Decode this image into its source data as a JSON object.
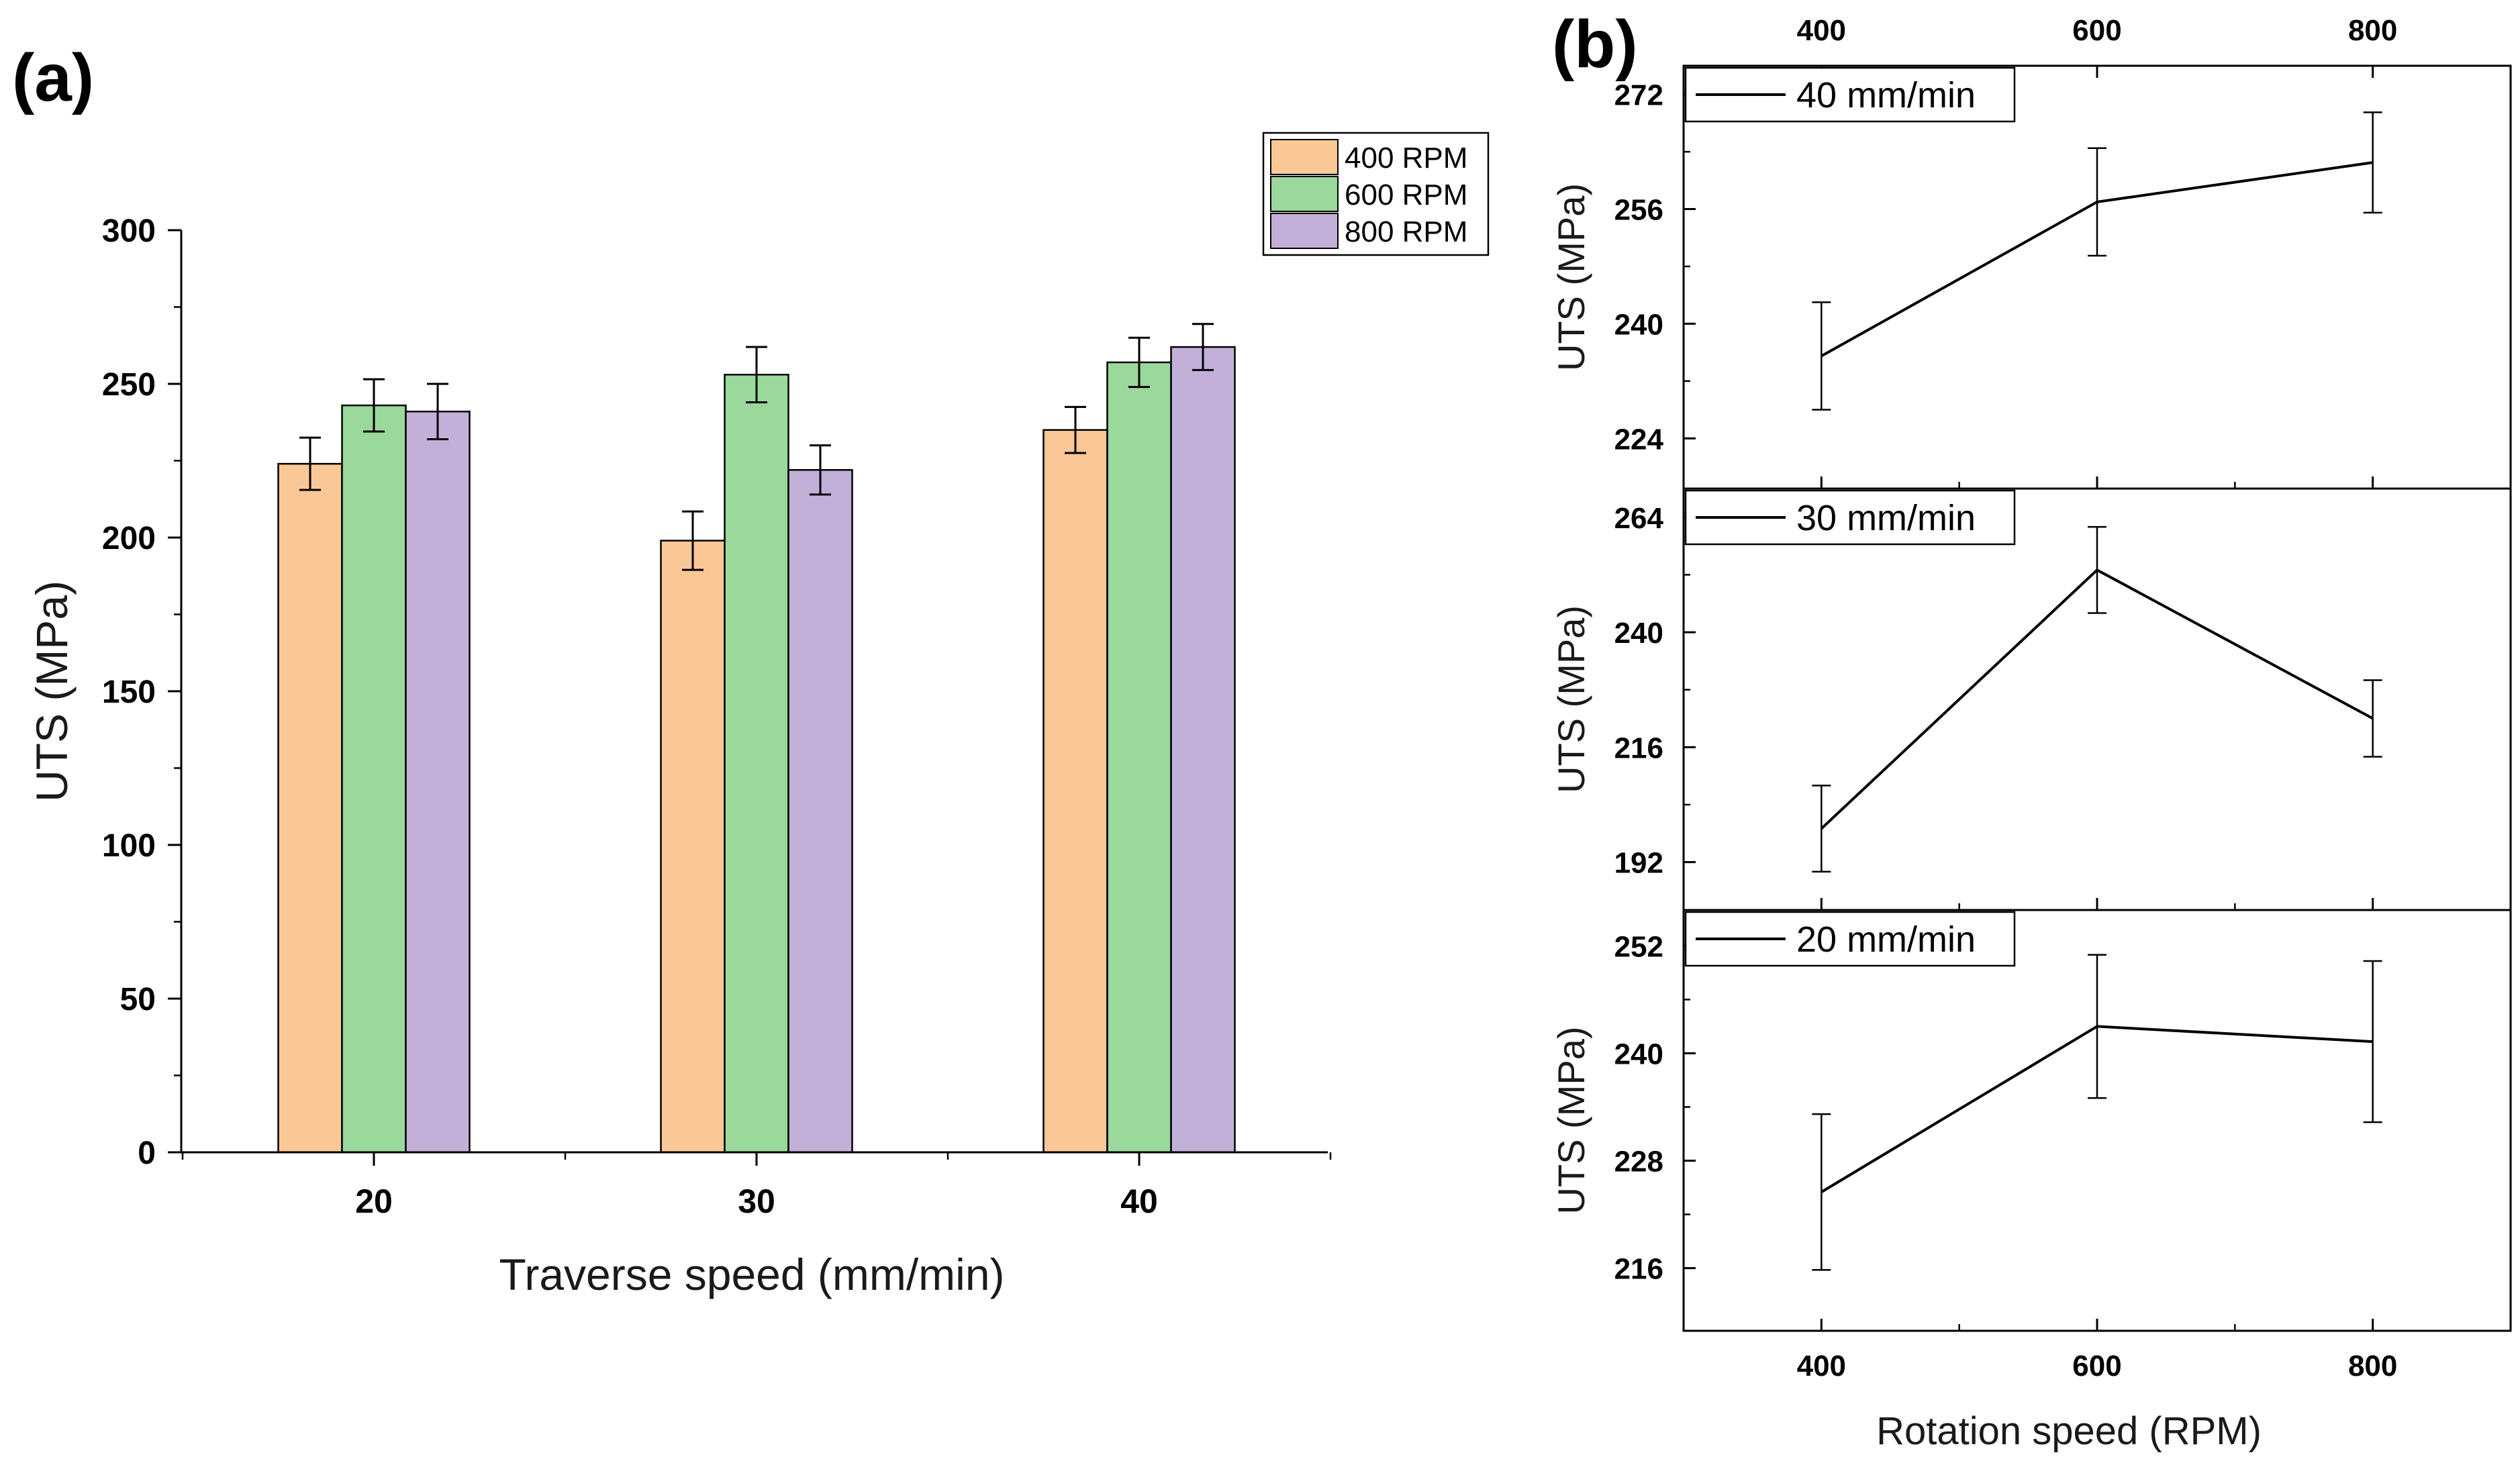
{
  "colors": {
    "rpm_400": "#FAC796",
    "rpm_600": "#9AD89C",
    "rpm_800": "#C2B0D8",
    "axis": "#000000",
    "line": "#000000"
  },
  "chart_data": [
    {
      "id": "a",
      "panel_label": "(a)",
      "type": "bar",
      "title": "",
      "xlabel": "Traverse speed (mm/min)",
      "ylabel": "UTS (MPa)",
      "categories": [
        "20",
        "30",
        "40"
      ],
      "ylim": [
        0,
        300
      ],
      "yticks": [
        0,
        50,
        100,
        150,
        200,
        250,
        300
      ],
      "legend_position": "top-right",
      "series": [
        {
          "name": "400 RPM",
          "color": "#FAC796",
          "values": [
            224,
            199,
            235
          ],
          "errors": [
            8.5,
            9.5,
            7.5
          ]
        },
        {
          "name": "600 RPM",
          "color": "#9AD89C",
          "values": [
            243,
            253,
            257
          ],
          "errors": [
            8.5,
            9,
            8
          ]
        },
        {
          "name": "800 RPM",
          "color": "#C2B0D8",
          "values": [
            241,
            222,
            262
          ],
          "errors": [
            9,
            8,
            7.5
          ]
        }
      ]
    },
    {
      "id": "b",
      "panel_label": "(b)",
      "type": "line",
      "xlabel": "Rotation speed (RPM)",
      "x": [
        400,
        600,
        800
      ],
      "xlim": [
        300,
        900
      ],
      "xticks": [
        400,
        600,
        800
      ],
      "panels": [
        {
          "legend": "40 mm/min",
          "ylabel": "UTS (MPa)",
          "ylim": [
            217,
            276
          ],
          "yticks": [
            224,
            240,
            256,
            272
          ],
          "values": [
            235.5,
            257,
            262.5
          ],
          "errors": [
            7.5,
            7.5,
            7
          ]
        },
        {
          "legend": "30 mm/min",
          "ylabel": "UTS (MPa)",
          "ylim": [
            182,
            270
          ],
          "yticks": [
            192,
            216,
            240,
            264
          ],
          "values": [
            199,
            253,
            222
          ],
          "errors": [
            9,
            9,
            8
          ]
        },
        {
          "legend": "20 mm/min",
          "ylabel": "UTS (MPa)",
          "ylim": [
            209,
            256
          ],
          "yticks": [
            216,
            228,
            240,
            252
          ],
          "values": [
            224.5,
            243,
            241.3
          ],
          "errors": [
            8.7,
            8,
            9
          ]
        }
      ]
    }
  ]
}
